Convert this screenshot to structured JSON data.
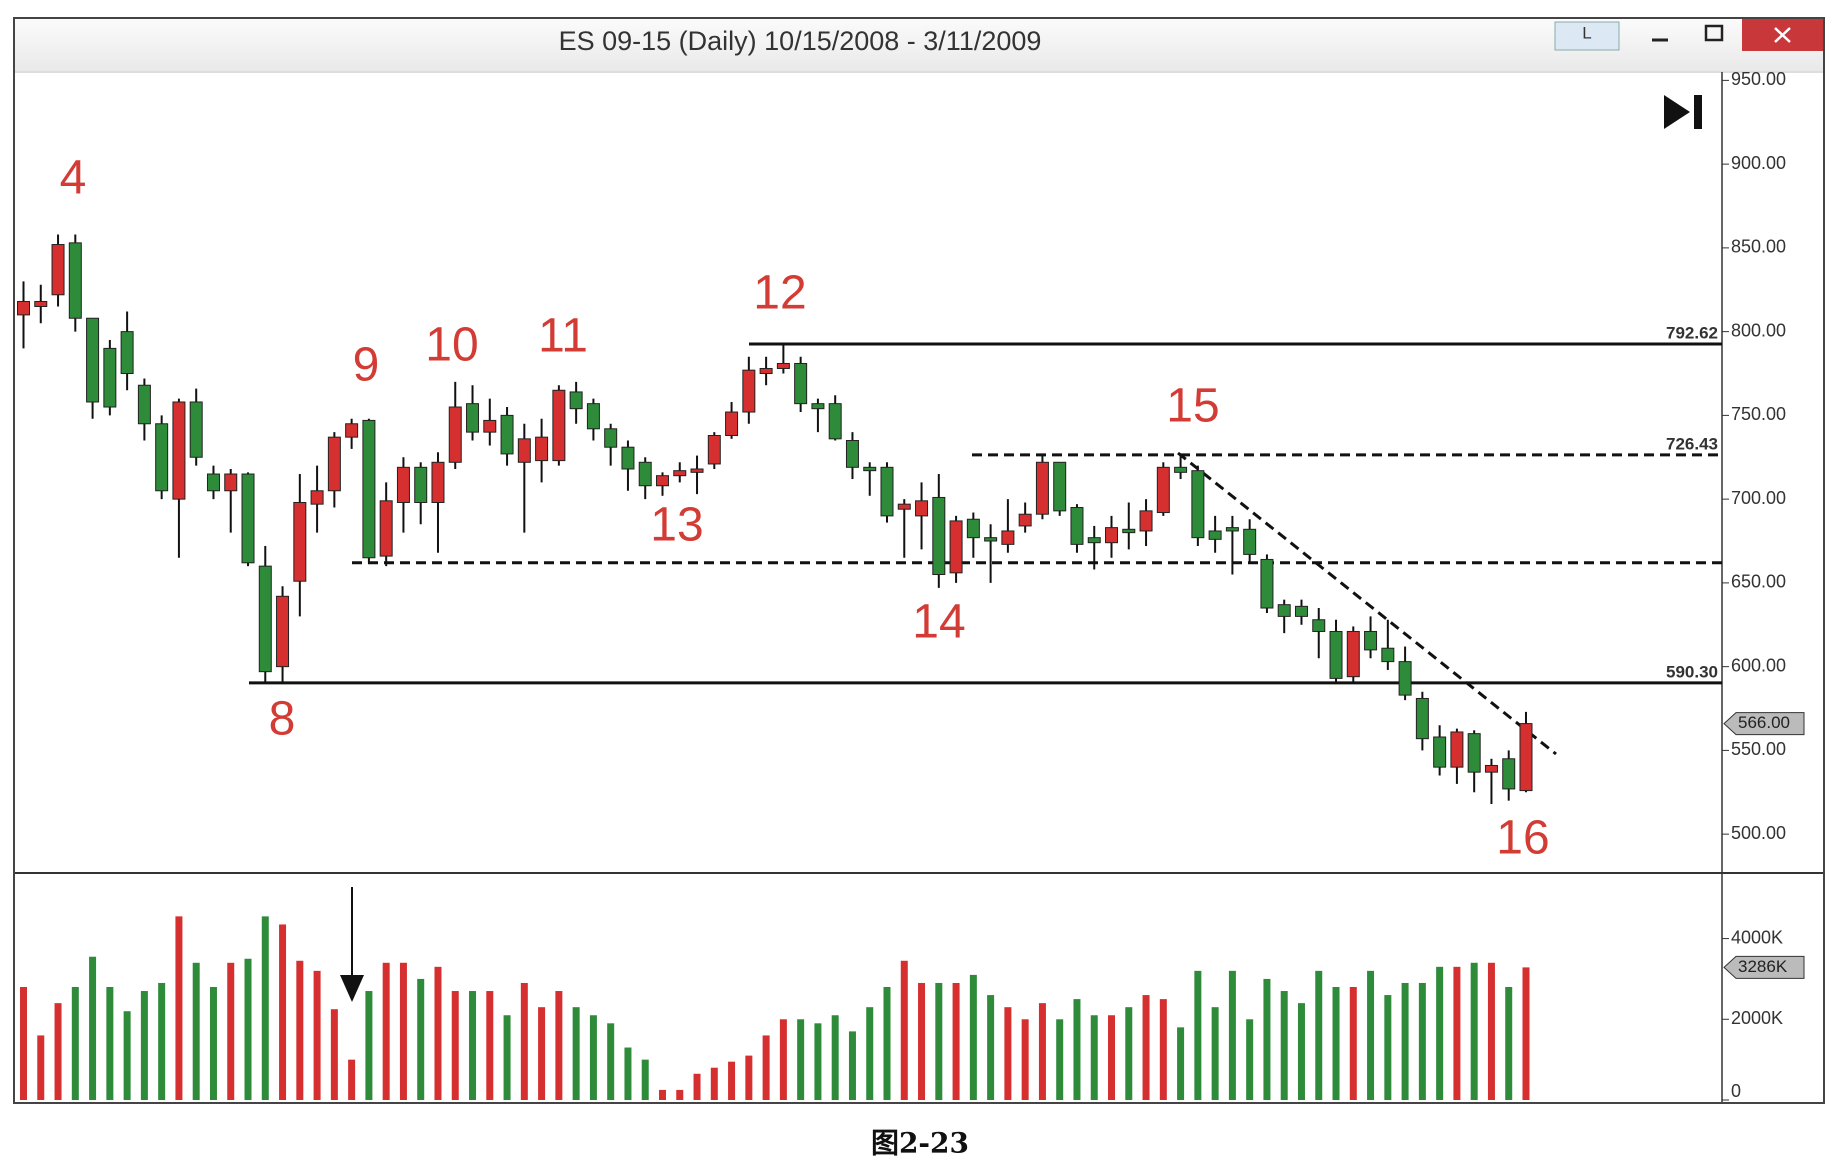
{
  "chart_data": {
    "type": "candlestick",
    "title": "ES 09-15 (Daily)  10/15/2008 - 3/11/2009",
    "button_label": "L",
    "up_color": "#d62f2f",
    "down_color": "#2e8b3a",
    "open": [
      810,
      815,
      822,
      853,
      808,
      790,
      800,
      768,
      745,
      700,
      758,
      715,
      705,
      715,
      660,
      600,
      651,
      697,
      705,
      737,
      747,
      666,
      698,
      719,
      698,
      722,
      757,
      740,
      750,
      722,
      723,
      723,
      764,
      757,
      742,
      731,
      722,
      708,
      714,
      716,
      721,
      738,
      752,
      775,
      778,
      781,
      757,
      757,
      735,
      719,
      719,
      694,
      690,
      701,
      656,
      688,
      677,
      673,
      684,
      691,
      722,
      695,
      677,
      674,
      682,
      681,
      692,
      719,
      717,
      681,
      683,
      682,
      664,
      637,
      636,
      628,
      621,
      594,
      621,
      611,
      603,
      581,
      558,
      540,
      560,
      537,
      545,
      526
    ],
    "high": [
      830,
      828,
      858,
      858,
      808,
      795,
      812,
      772,
      750,
      760,
      766,
      720,
      718,
      716,
      672,
      648,
      715,
      720,
      740,
      748,
      748,
      710,
      725,
      722,
      728,
      770,
      768,
      760,
      755,
      745,
      748,
      768,
      770,
      760,
      745,
      735,
      725,
      716,
      722,
      726,
      740,
      758,
      785,
      785,
      792,
      785,
      760,
      762,
      740,
      722,
      722,
      700,
      710,
      715,
      690,
      692,
      685,
      700,
      698,
      726,
      722,
      697,
      684,
      690,
      698,
      700,
      722,
      727,
      720,
      690,
      690,
      688,
      667,
      640,
      640,
      635,
      628,
      624,
      630,
      628,
      612,
      585,
      565,
      563,
      562,
      545,
      550,
      573
    ],
    "low": [
      790,
      805,
      815,
      800,
      748,
      750,
      765,
      735,
      700,
      665,
      720,
      700,
      680,
      660,
      590,
      590,
      630,
      680,
      695,
      730,
      662,
      660,
      680,
      685,
      668,
      718,
      735,
      732,
      720,
      680,
      710,
      720,
      745,
      735,
      720,
      705,
      700,
      702,
      710,
      703,
      718,
      736,
      745,
      768,
      775,
      752,
      740,
      735,
      712,
      702,
      686,
      665,
      670,
      647,
      650,
      665,
      650,
      668,
      680,
      688,
      690,
      668,
      658,
      665,
      670,
      672,
      690,
      712,
      672,
      668,
      655,
      662,
      632,
      620,
      625,
      605,
      590,
      590,
      605,
      598,
      580,
      550,
      535,
      530,
      525,
      518,
      520,
      525
    ],
    "close": [
      818,
      818,
      852,
      808,
      758,
      755,
      775,
      745,
      705,
      758,
      725,
      705,
      715,
      662,
      597,
      642,
      698,
      705,
      737,
      745,
      665,
      699,
      719,
      698,
      722,
      755,
      740,
      747,
      727,
      736,
      737,
      765,
      754,
      742,
      731,
      718,
      708,
      714,
      717,
      718,
      738,
      752,
      777,
      778,
      781,
      757,
      754,
      736,
      719,
      717,
      690,
      697,
      699,
      655,
      687,
      677,
      675,
      681,
      691,
      722,
      693,
      673,
      674,
      683,
      680,
      693,
      719,
      716,
      677,
      676,
      681,
      667,
      635,
      630,
      630,
      621,
      593,
      621,
      610,
      603,
      583,
      557,
      540,
      561,
      537,
      541,
      527,
      566
    ],
    "volume": [
      2800,
      1600,
      2400,
      2800,
      3550,
      2800,
      2200,
      2700,
      2900,
      4550,
      3400,
      2800,
      3400,
      3500,
      4550,
      4350,
      3450,
      3200,
      2250,
      1000,
      2700,
      3400,
      3400,
      3000,
      3300,
      2700,
      2700,
      2700,
      2100,
      2900,
      2300,
      2700,
      2300,
      2100,
      1900,
      1300,
      1000,
      250,
      250,
      650,
      800,
      950,
      1100,
      1600,
      2000,
      2000,
      1900,
      2100,
      1700,
      2300,
      2800,
      3450,
      2900,
      2900,
      2900,
      3100,
      2600,
      2300,
      2000,
      2400,
      2000,
      2500,
      2100,
      2100,
      2300,
      2600,
      2500,
      1800,
      3200,
      2300,
      3200,
      2000,
      3000,
      2700,
      2400,
      3200,
      2800,
      2800,
      3200,
      2600,
      2900,
      2900,
      3300,
      3300,
      3400,
      3400,
      2800,
      3286
    ],
    "ylim": [
      478,
      955
    ],
    "yticks": [
      {
        "value": 500,
        "label": "500.00"
      },
      {
        "value": 550,
        "label": "550.00"
      },
      {
        "value": 600,
        "label": "600.00"
      },
      {
        "value": 650,
        "label": "650.00"
      },
      {
        "value": 700,
        "label": "700.00"
      },
      {
        "value": 750,
        "label": "750.00"
      },
      {
        "value": 800,
        "label": "800.00"
      },
      {
        "value": 850,
        "label": "850.00"
      },
      {
        "value": 900,
        "label": "900.00"
      },
      {
        "value": 950,
        "label": "950.00"
      }
    ],
    "volume_ylim": [
      0,
      5600
    ],
    "volume_yticks": [
      0,
      {
        "value": 2000,
        "label": "2000K"
      },
      {
        "value": 4000,
        "label": "4000K"
      }
    ],
    "last_price": {
      "value": 566,
      "label": "566.00"
    },
    "last_volume": {
      "value": 3286,
      "label": "3286K"
    },
    "levels": [
      792.62,
      726.43,
      {
        "value": 590.3,
        "label": "590.30"
      }
    ],
    "level_dashed": [
      false,
      true,
      false
    ],
    "unlabeled_level": 662,
    "annotations": [
      "4",
      "8",
      "9",
      "10",
      "11",
      "12",
      "13",
      "14",
      "15",
      "16"
    ]
  },
  "caption": "图2-23"
}
